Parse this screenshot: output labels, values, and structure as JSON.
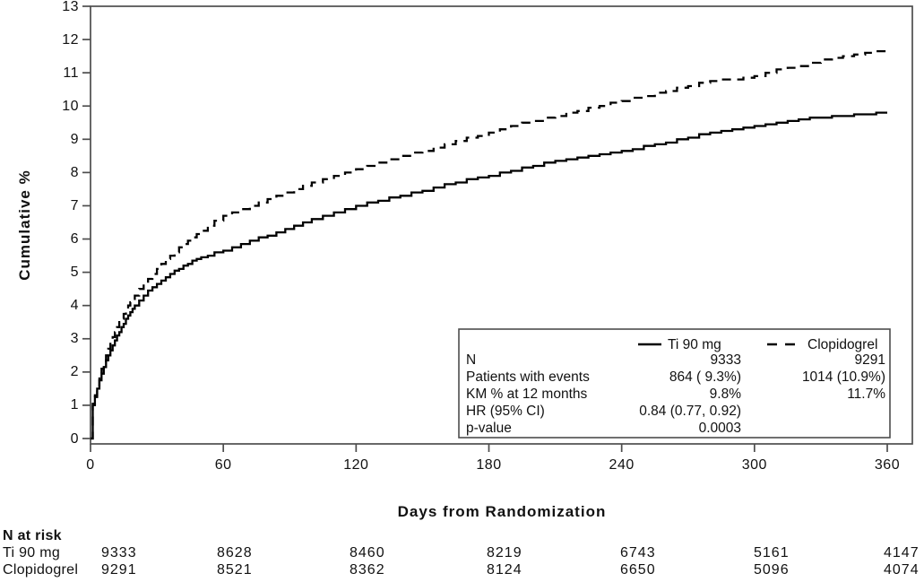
{
  "chart_data": {
    "type": "line",
    "subtype": "kaplan-meier-step",
    "title": "",
    "xlabel": "Days from Randomization",
    "ylabel": "Cumulative %",
    "xlim": [
      0,
      360
    ],
    "ylim": [
      0,
      13
    ],
    "x_ticks": [
      "0",
      "60",
      "120",
      "180",
      "240",
      "300",
      "360"
    ],
    "x_tick_values": [
      0,
      60,
      120,
      180,
      240,
      300,
      360
    ],
    "y_ticks": [
      "0",
      "1",
      "2",
      "3",
      "4",
      "5",
      "6",
      "7",
      "8",
      "9",
      "10",
      "11",
      "12",
      "13"
    ],
    "y_tick_values": [
      0,
      1,
      2,
      3,
      4,
      5,
      6,
      7,
      8,
      9,
      10,
      11,
      12,
      13
    ],
    "grid": false,
    "legend_position": "inside-bottom-right",
    "series": [
      {
        "name": "Ti 90 mg",
        "style": "solid",
        "points": [
          [
            0,
            0
          ],
          [
            1,
            1.0
          ],
          [
            2,
            1.25
          ],
          [
            3,
            1.5
          ],
          [
            4,
            1.75
          ],
          [
            5,
            1.95
          ],
          [
            6,
            2.15
          ],
          [
            7,
            2.35
          ],
          [
            8,
            2.5
          ],
          [
            9,
            2.65
          ],
          [
            10,
            2.8
          ],
          [
            11,
            2.95
          ],
          [
            12,
            3.1
          ],
          [
            13,
            3.2
          ],
          [
            14,
            3.35
          ],
          [
            15,
            3.45
          ],
          [
            16,
            3.6
          ],
          [
            17,
            3.7
          ],
          [
            18,
            3.8
          ],
          [
            19,
            3.9
          ],
          [
            20,
            4.0
          ],
          [
            22,
            4.15
          ],
          [
            24,
            4.3
          ],
          [
            26,
            4.45
          ],
          [
            28,
            4.55
          ],
          [
            30,
            4.65
          ],
          [
            32,
            4.75
          ],
          [
            34,
            4.85
          ],
          [
            36,
            4.95
          ],
          [
            38,
            5.05
          ],
          [
            40,
            5.1
          ],
          [
            42,
            5.2
          ],
          [
            44,
            5.25
          ],
          [
            46,
            5.35
          ],
          [
            48,
            5.4
          ],
          [
            50,
            5.45
          ],
          [
            53,
            5.5
          ],
          [
            56,
            5.6
          ],
          [
            60,
            5.65
          ],
          [
            64,
            5.75
          ],
          [
            68,
            5.85
          ],
          [
            72,
            5.95
          ],
          [
            76,
            6.05
          ],
          [
            80,
            6.1
          ],
          [
            84,
            6.2
          ],
          [
            88,
            6.3
          ],
          [
            92,
            6.4
          ],
          [
            96,
            6.5
          ],
          [
            100,
            6.6
          ],
          [
            105,
            6.7
          ],
          [
            110,
            6.8
          ],
          [
            115,
            6.9
          ],
          [
            120,
            7.0
          ],
          [
            125,
            7.1
          ],
          [
            130,
            7.15
          ],
          [
            135,
            7.25
          ],
          [
            140,
            7.3
          ],
          [
            145,
            7.4
          ],
          [
            150,
            7.45
          ],
          [
            155,
            7.55
          ],
          [
            160,
            7.65
          ],
          [
            165,
            7.7
          ],
          [
            170,
            7.8
          ],
          [
            175,
            7.85
          ],
          [
            180,
            7.9
          ],
          [
            185,
            8.0
          ],
          [
            190,
            8.05
          ],
          [
            195,
            8.15
          ],
          [
            200,
            8.2
          ],
          [
            205,
            8.3
          ],
          [
            210,
            8.35
          ],
          [
            215,
            8.4
          ],
          [
            220,
            8.45
          ],
          [
            225,
            8.5
          ],
          [
            230,
            8.55
          ],
          [
            235,
            8.6
          ],
          [
            240,
            8.65
          ],
          [
            245,
            8.7
          ],
          [
            250,
            8.8
          ],
          [
            255,
            8.85
          ],
          [
            260,
            8.9
          ],
          [
            265,
            9.0
          ],
          [
            270,
            9.05
          ],
          [
            275,
            9.15
          ],
          [
            280,
            9.2
          ],
          [
            285,
            9.25
          ],
          [
            290,
            9.3
          ],
          [
            295,
            9.35
          ],
          [
            300,
            9.4
          ],
          [
            305,
            9.45
          ],
          [
            310,
            9.5
          ],
          [
            315,
            9.55
          ],
          [
            320,
            9.6
          ],
          [
            325,
            9.65
          ],
          [
            330,
            9.65
          ],
          [
            335,
            9.7
          ],
          [
            340,
            9.7
          ],
          [
            345,
            9.75
          ],
          [
            350,
            9.75
          ],
          [
            355,
            9.8
          ],
          [
            360,
            9.8
          ]
        ]
      },
      {
        "name": "Clopidogrel",
        "style": "dashed",
        "points": [
          [
            0,
            0
          ],
          [
            1,
            1.05
          ],
          [
            2,
            1.3
          ],
          [
            3,
            1.6
          ],
          [
            4,
            1.85
          ],
          [
            5,
            2.1
          ],
          [
            6,
            2.3
          ],
          [
            7,
            2.5
          ],
          [
            8,
            2.7
          ],
          [
            9,
            2.9
          ],
          [
            10,
            3.05
          ],
          [
            11,
            3.2
          ],
          [
            12,
            3.35
          ],
          [
            13,
            3.5
          ],
          [
            14,
            3.6
          ],
          [
            15,
            3.75
          ],
          [
            16,
            3.85
          ],
          [
            17,
            4.0
          ],
          [
            18,
            4.1
          ],
          [
            19,
            4.2
          ],
          [
            20,
            4.3
          ],
          [
            22,
            4.5
          ],
          [
            24,
            4.65
          ],
          [
            26,
            4.8
          ],
          [
            28,
            4.95
          ],
          [
            30,
            5.1
          ],
          [
            32,
            5.25
          ],
          [
            34,
            5.4
          ],
          [
            36,
            5.5
          ],
          [
            38,
            5.6
          ],
          [
            40,
            5.75
          ],
          [
            42,
            5.85
          ],
          [
            44,
            5.95
          ],
          [
            46,
            6.05
          ],
          [
            48,
            6.15
          ],
          [
            50,
            6.25
          ],
          [
            53,
            6.4
          ],
          [
            56,
            6.55
          ],
          [
            60,
            6.7
          ],
          [
            64,
            6.8
          ],
          [
            68,
            6.9
          ],
          [
            72,
            7.0
          ],
          [
            76,
            7.1
          ],
          [
            80,
            7.2
          ],
          [
            84,
            7.3
          ],
          [
            88,
            7.4
          ],
          [
            92,
            7.5
          ],
          [
            96,
            7.6
          ],
          [
            100,
            7.7
          ],
          [
            105,
            7.8
          ],
          [
            110,
            7.9
          ],
          [
            115,
            8.0
          ],
          [
            120,
            8.1
          ],
          [
            125,
            8.2
          ],
          [
            130,
            8.3
          ],
          [
            135,
            8.4
          ],
          [
            140,
            8.5
          ],
          [
            145,
            8.6
          ],
          [
            150,
            8.65
          ],
          [
            155,
            8.75
          ],
          [
            160,
            8.85
          ],
          [
            165,
            8.95
          ],
          [
            170,
            9.05
          ],
          [
            175,
            9.1
          ],
          [
            180,
            9.2
          ],
          [
            185,
            9.3
          ],
          [
            190,
            9.4
          ],
          [
            195,
            9.5
          ],
          [
            200,
            9.55
          ],
          [
            205,
            9.65
          ],
          [
            210,
            9.7
          ],
          [
            215,
            9.8
          ],
          [
            220,
            9.85
          ],
          [
            225,
            9.95
          ],
          [
            230,
            10.0
          ],
          [
            235,
            10.1
          ],
          [
            240,
            10.15
          ],
          [
            245,
            10.25
          ],
          [
            250,
            10.3
          ],
          [
            255,
            10.4
          ],
          [
            260,
            10.45
          ],
          [
            265,
            10.55
          ],
          [
            270,
            10.6
          ],
          [
            275,
            10.7
          ],
          [
            280,
            10.75
          ],
          [
            285,
            10.8
          ],
          [
            290,
            10.8
          ],
          [
            295,
            10.85
          ],
          [
            300,
            10.9
          ],
          [
            305,
            11.0
          ],
          [
            310,
            11.1
          ],
          [
            315,
            11.15
          ],
          [
            320,
            11.2
          ],
          [
            325,
            11.3
          ],
          [
            330,
            11.4
          ],
          [
            335,
            11.45
          ],
          [
            340,
            11.5
          ],
          [
            345,
            11.55
          ],
          [
            350,
            11.6
          ],
          [
            355,
            11.65
          ],
          [
            360,
            11.65
          ]
        ]
      }
    ]
  },
  "axes": {
    "y_title": "Cumulative %",
    "x_title": "Days from Randomization"
  },
  "legend_box": {
    "entries": [
      {
        "label": "Ti 90 mg",
        "style": "solid"
      },
      {
        "label": "Clopidogrel",
        "style": "dashed"
      }
    ],
    "rows": [
      {
        "label": "N",
        "col1": "9333",
        "col2": "9291"
      },
      {
        "label": "Patients with events",
        "col1": "864 ( 9.3%)",
        "col2": "1014 (10.9%)"
      },
      {
        "label": "KM % at 12 months",
        "col1": "9.8%",
        "col2": "11.7%"
      },
      {
        "label": "HR (95% CI)",
        "col1": "0.84 (0.77, 0.92)",
        "col2": ""
      },
      {
        "label": "p-value",
        "col1": "0.0003",
        "col2": ""
      }
    ]
  },
  "n_at_risk": {
    "title": "N at risk",
    "rows": [
      {
        "label": "Ti 90 mg",
        "values": [
          "9333",
          "8628",
          "8460",
          "8219",
          "6743",
          "5161",
          "4147"
        ]
      },
      {
        "label": "Clopidogrel",
        "values": [
          "9291",
          "8521",
          "8362",
          "8124",
          "6650",
          "5096",
          "4074"
        ]
      }
    ]
  },
  "colors": {
    "curve": "#000000",
    "axis": "#4d4d4d",
    "text": "#111111",
    "background": "#ffffff"
  }
}
